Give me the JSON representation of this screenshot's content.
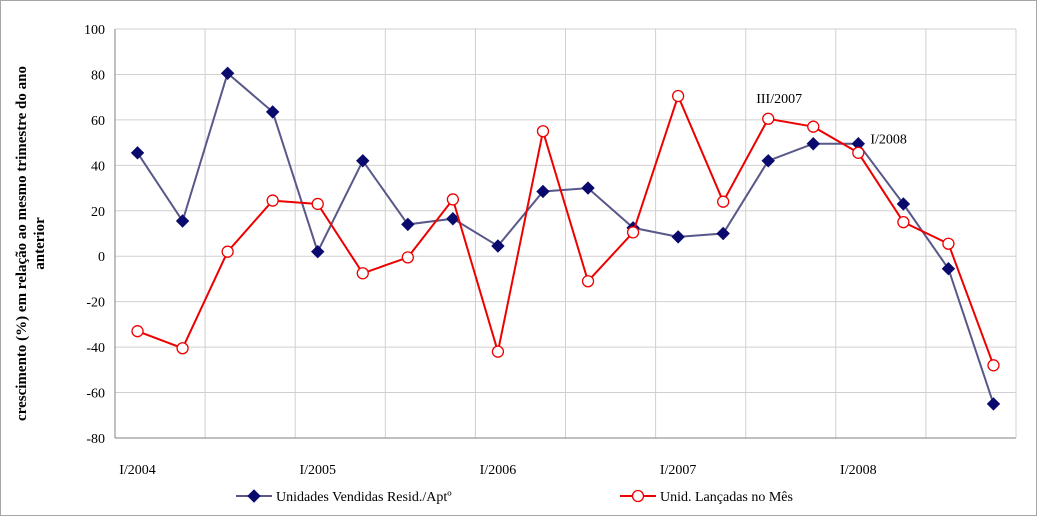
{
  "chart_data": {
    "type": "line",
    "title": "",
    "ylabel": "crescimento (%)  em relação ao mesmo trimestre do ano anterior",
    "xlabel": "",
    "ylim": [
      -80,
      100
    ],
    "ytick_step": 20,
    "x_tick_labels": [
      "I/2004",
      "I/2005",
      "I/2006",
      "I/2007",
      "I/2008"
    ],
    "x_tick_label_indices": [
      0,
      4,
      8,
      12,
      16
    ],
    "point_count": 20,
    "grid": true,
    "legend_position": "bottom",
    "series": [
      {
        "name": "Unidades Vendidas Resid./Aptº",
        "color": "#58588a",
        "marker": "diamond",
        "marker_color": "#0a0a6e",
        "values": [
          45.5,
          15.5,
          80.5,
          63.5,
          2,
          42,
          14,
          16.5,
          4.5,
          28.5,
          30,
          12.5,
          8.5,
          10,
          42,
          49.5,
          49.5,
          23,
          -5.5,
          -65
        ]
      },
      {
        "name": "Unid. Lançadas no Mês",
        "color": "#ee0000",
        "marker": "circle-open",
        "marker_color": "#ee0000",
        "values": [
          -33,
          -40.5,
          2,
          24.5,
          23,
          -7.5,
          -0.5,
          25,
          -42,
          55,
          -11,
          10.5,
          70.5,
          24,
          60.5,
          57,
          45.5,
          15,
          5.5,
          -48
        ]
      }
    ],
    "annotations": [
      {
        "text": "III/2007",
        "index": 14
      },
      {
        "text": "I/2008",
        "index": 16
      }
    ]
  }
}
